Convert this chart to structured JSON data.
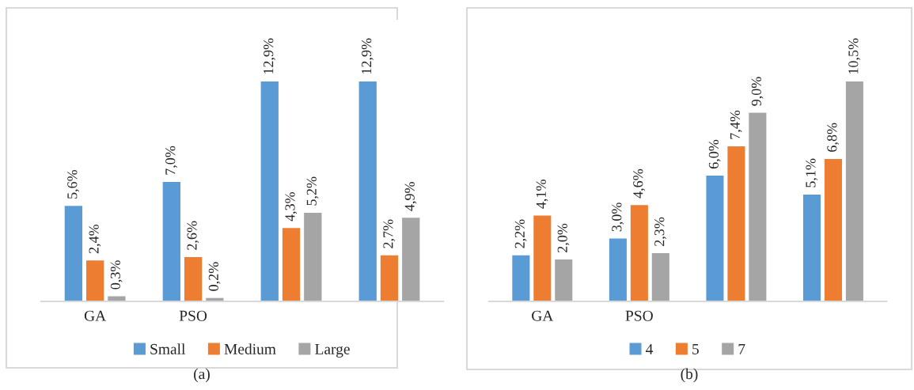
{
  "chart_data": [
    {
      "type": "bar",
      "categories": [
        "GA",
        "PSO",
        null,
        null
      ],
      "annotations": [
        "(a)"
      ],
      "legend": "bottom",
      "tick_labels": "x",
      "grid": false,
      "series": [
        {
          "name": "Small",
          "color": "#5b9bd5",
          "values": [
            5.6,
            7.0,
            12.9,
            12.9
          ],
          "value_labels": [
            "5,6%",
            "7,0%",
            "12,9%",
            "12,9%"
          ]
        },
        {
          "name": "Medium",
          "color": "#ed7d31",
          "values": [
            2.4,
            2.6,
            4.3,
            2.7
          ],
          "value_labels": [
            "2,4%",
            "2,6%",
            "4,3%",
            "2,7%"
          ]
        },
        {
          "name": "Large",
          "color": "#a5a5a5",
          "values": [
            0.3,
            0.2,
            5.2,
            4.9
          ],
          "value_labels": [
            "0,3%",
            "0,2%",
            "5,2%",
            "4,9%"
          ]
        }
      ]
    },
    {
      "type": "bar",
      "categories": [
        "GA",
        "PSO",
        null,
        null
      ],
      "annotations": [
        "(b)"
      ],
      "legend": "bottom",
      "tick_labels": "x",
      "grid": false,
      "series": [
        {
          "name": "4",
          "color": "#5b9bd5",
          "values": [
            2.2,
            3.0,
            6.0,
            5.1
          ],
          "value_labels": [
            "2,2%",
            "3,0%",
            "6,0%",
            "5,1%"
          ]
        },
        {
          "name": "5",
          "color": "#ed7d31",
          "values": [
            4.1,
            4.6,
            7.4,
            6.8
          ],
          "value_labels": [
            "4,1%",
            "4,6%",
            "7,4%",
            "6,8%"
          ]
        },
        {
          "name": "7",
          "color": "#a5a5a5",
          "values": [
            2.0,
            2.3,
            9.0,
            10.5
          ],
          "value_labels": [
            "2,0%",
            "2,3%",
            "9,0%",
            "10,5%"
          ]
        }
      ]
    }
  ]
}
